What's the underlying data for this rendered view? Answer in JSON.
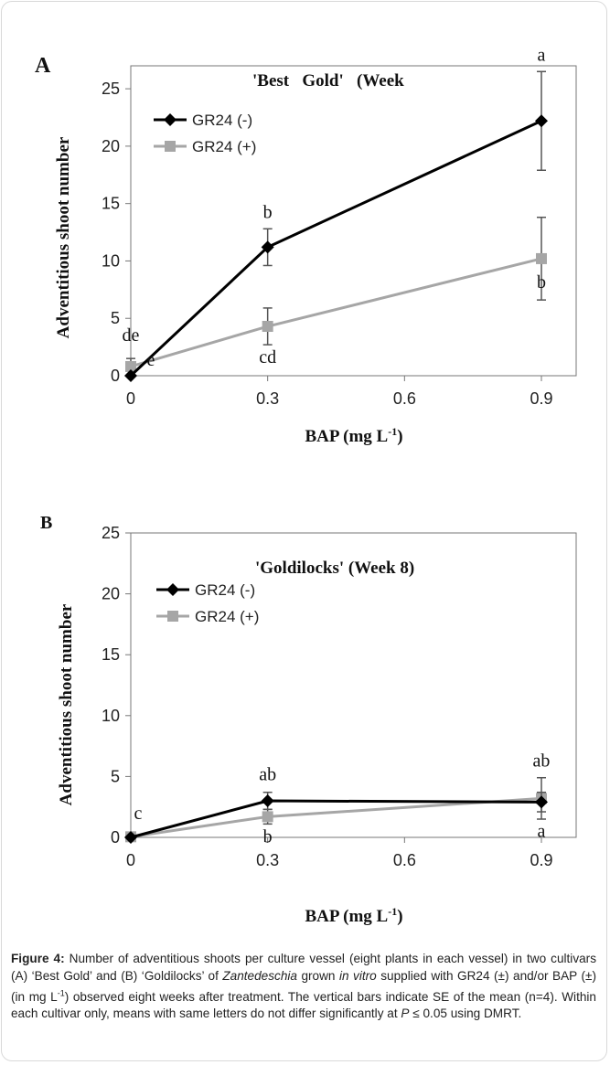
{
  "figure": {
    "caption_label": "Figure 4:",
    "caption_parts": [
      {
        "text": " Number of adventitious shoots per culture vessel (eight plants in each vessel) in two cultivars (A) ‘Best Gold’ and (B) ‘Goldilocks’ of ",
        "style": "normal"
      },
      {
        "text": "Zantedeschia",
        "style": "italic"
      },
      {
        "text": " grown ",
        "style": "normal"
      },
      {
        "text": "in vitro",
        "style": "italic"
      },
      {
        "text": " supplied with GR24 (±) and/or BAP (±) (in mg L",
        "style": "normal"
      },
      {
        "text": "-1",
        "style": "sup"
      },
      {
        "text": ") observed eight weeks after treatment. The vertical bars indicate SE of the mean (n=4). Within each cultivar only, means with same letters do not differ significantly at ",
        "style": "normal"
      },
      {
        "text": "P",
        "style": "italic"
      },
      {
        "text": " ≤ 0.05 using DMRT.",
        "style": "normal"
      }
    ]
  },
  "colors": {
    "series_minus": "#000000",
    "series_plus": "#a6a6a6",
    "error_bar": "#555555",
    "axis": "#777777"
  },
  "chart_data": [
    {
      "panel": "A",
      "type": "line",
      "title": "'Best   Gold'   (Week",
      "xlabel": "BAP (mg L",
      "xlabel_sup": "-1",
      "xlabel_end": ")",
      "ylabel": "Adventitious shoot number",
      "x": [
        0,
        0.3,
        0.9
      ],
      "x_ticks": [
        "0",
        "0.3",
        "0.6",
        "0.9"
      ],
      "x_tick_values": [
        0,
        0.3,
        0.6,
        0.9
      ],
      "y_ticks": [
        "0",
        "5",
        "10",
        "15",
        "20",
        "25"
      ],
      "y_tick_values": [
        0,
        5,
        10,
        15,
        20,
        25
      ],
      "xlim": [
        0,
        0.9
      ],
      "ylim": [
        0,
        27
      ],
      "grid": false,
      "legend": "top-left",
      "series": [
        {
          "name": "GR24 (-)",
          "marker": "diamond",
          "values": [
            0,
            11.2,
            22.2
          ],
          "errors": [
            0,
            1.6,
            4.3
          ],
          "letters": [
            "e",
            "b",
            "a"
          ]
        },
        {
          "name": "GR24 (+)",
          "marker": "square",
          "values": [
            0.8,
            4.3,
            10.2
          ],
          "errors": [
            0.7,
            1.6,
            3.6
          ],
          "letters": [
            "de",
            "cd",
            "b"
          ]
        }
      ]
    },
    {
      "panel": "B",
      "type": "line",
      "title": "'Goldilocks' (Week 8)",
      "xlabel": "BAP (mg L",
      "xlabel_sup": "-1",
      "xlabel_end": ")",
      "ylabel": "Adventitious shoot number",
      "x": [
        0,
        0.3,
        0.9
      ],
      "x_ticks": [
        "0",
        "0.3",
        "0.6",
        "0.9"
      ],
      "x_tick_values": [
        0,
        0.3,
        0.6,
        0.9
      ],
      "y_ticks": [
        "0",
        "5",
        "10",
        "15",
        "20",
        "25"
      ],
      "y_tick_values": [
        0,
        5,
        10,
        15,
        20,
        25
      ],
      "xlim": [
        0,
        0.9
      ],
      "ylim": [
        0,
        25
      ],
      "grid": false,
      "legend": "top-left",
      "series": [
        {
          "name": "GR24 (-)",
          "marker": "diamond",
          "values": [
            0,
            3.0,
            2.9
          ],
          "errors": [
            0,
            0.7,
            0.8
          ],
          "letters": [
            "c",
            "ab",
            "a"
          ]
        },
        {
          "name": "GR24 (+)",
          "marker": "square",
          "values": [
            0.05,
            1.7,
            3.2
          ],
          "errors": [
            0,
            0.6,
            1.7
          ],
          "letters": [
            "",
            "b",
            "ab"
          ]
        }
      ]
    }
  ]
}
